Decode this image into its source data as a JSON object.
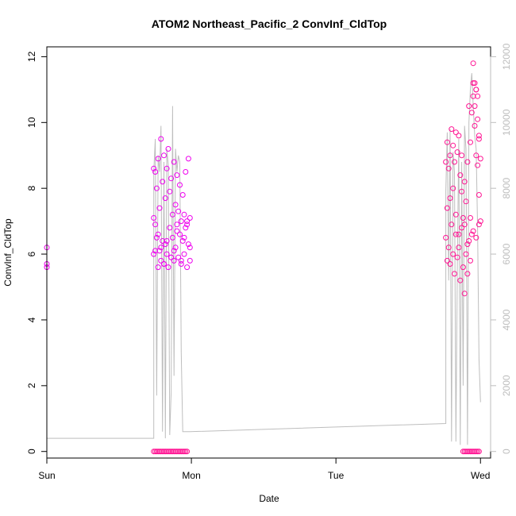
{
  "chart_data": {
    "type": "scatter",
    "title": "ATOM2 Northeast_Pacific_2 ConvInf_CldTop",
    "xlabel": "Date",
    "ylabel": "ConvInf_CldTop",
    "x_unit": "days",
    "xlim": [
      0,
      3.07
    ],
    "ylim": [
      -0.2,
      12.3
    ],
    "y2lim": [
      -200,
      12300
    ],
    "x_ticks": [
      {
        "value": 0,
        "label": "Sun"
      },
      {
        "value": 1,
        "label": "Mon"
      },
      {
        "value": 2,
        "label": "Tue"
      },
      {
        "value": 3,
        "label": "Wed"
      }
    ],
    "y_ticks": [
      0,
      2,
      4,
      6,
      8,
      10,
      12
    ],
    "y2_ticks": [
      0,
      2000,
      4000,
      6000,
      8000,
      10000,
      12000
    ],
    "grid": false,
    "legend": "none",
    "colors": {
      "points": "#ee00ee",
      "points_dense": "#ff1493",
      "line": "#bebebe",
      "axis": "#000000",
      "right_axis": "#bdbdbd"
    },
    "series": [
      {
        "kind": "points",
        "axis": "left",
        "x": [
          0.0,
          0.0,
          0.0,
          0.74,
          0.74,
          0.74,
          0.75,
          0.75,
          0.76,
          0.76,
          0.77,
          0.77,
          0.78,
          0.78,
          0.79,
          0.79,
          0.8,
          0.8,
          0.81,
          0.81,
          0.82,
          0.82,
          0.83,
          0.83,
          0.84,
          0.84,
          0.85,
          0.85,
          0.86,
          0.86,
          0.87,
          0.87,
          0.88,
          0.88,
          0.89,
          0.89,
          0.9,
          0.9,
          0.91,
          0.91,
          0.92,
          0.92,
          0.93,
          0.93,
          0.94,
          0.94,
          0.95,
          0.95,
          0.96,
          0.96,
          0.97,
          0.97,
          0.98,
          0.98,
          0.99,
          0.99,
          0.75,
          0.77,
          0.79,
          0.81,
          0.83,
          0.86,
          0.88,
          0.9,
          0.93,
          0.95,
          0.97,
          0.99,
          0.74,
          0.75,
          0.76,
          0.77,
          0.78,
          0.79,
          0.8,
          0.81,
          0.82,
          0.83,
          0.84,
          0.85,
          0.86,
          0.87,
          0.88,
          0.89,
          0.9,
          0.91,
          0.92,
          0.93,
          0.94,
          0.95,
          0.96,
          0.97,
          2.76,
          2.76,
          2.77,
          2.77,
          2.78,
          2.78,
          2.79,
          2.79,
          2.8,
          2.8,
          2.81,
          2.81,
          2.82,
          2.82,
          2.83,
          2.83,
          2.84,
          2.84,
          2.85,
          2.85,
          2.86,
          2.86,
          2.87,
          2.87,
          2.88,
          2.88,
          2.89,
          2.89,
          2.9,
          2.9,
          2.91,
          2.91,
          2.92,
          2.92,
          2.93,
          2.93,
          2.94,
          2.94,
          2.95,
          2.95,
          2.96,
          2.96,
          2.97,
          2.97,
          2.98,
          2.98,
          2.99,
          2.99,
          3.0,
          3.0,
          2.77,
          2.79,
          2.81,
          2.83,
          2.85,
          2.87,
          2.89,
          2.91,
          2.93,
          2.95,
          2.97,
          2.99,
          2.95,
          2.96,
          2.97,
          2.98,
          2.99,
          2.88,
          2.89,
          2.9,
          2.91,
          2.92,
          2.93,
          2.94,
          2.95,
          2.96,
          2.97,
          2.98,
          2.99
        ],
        "y": [
          6.2,
          5.7,
          5.6,
          8.6,
          7.1,
          6.0,
          8.5,
          6.9,
          8.0,
          6.5,
          8.9,
          5.6,
          7.4,
          6.1,
          9.5,
          5.8,
          8.2,
          6.4,
          9.0,
          5.7,
          7.7,
          6.3,
          8.6,
          6.0,
          9.2,
          5.6,
          7.9,
          6.8,
          8.3,
          5.9,
          7.2,
          6.5,
          8.8,
          5.8,
          7.5,
          6.2,
          8.4,
          6.9,
          7.3,
          5.9,
          8.1,
          6.6,
          7.0,
          5.7,
          7.8,
          6.4,
          7.2,
          6.0,
          8.5,
          6.8,
          7.0,
          5.6,
          8.9,
          6.3,
          7.1,
          5.8,
          6.1,
          6.6,
          6.2,
          5.7,
          6.4,
          5.9,
          6.1,
          6.7,
          5.8,
          6.5,
          6.9,
          6.2,
          0.0,
          0.0,
          0.0,
          0.0,
          0.0,
          0.0,
          0.0,
          0.0,
          0.0,
          0.0,
          0.0,
          0.0,
          0.0,
          0.0,
          0.0,
          0.0,
          0.0,
          0.0,
          0.0,
          0.0,
          0.0,
          0.0,
          0.0,
          0.0,
          8.8,
          6.5,
          9.4,
          5.8,
          8.6,
          6.2,
          9.0,
          5.7,
          9.8,
          6.9,
          9.3,
          6.0,
          8.8,
          5.4,
          9.7,
          6.6,
          9.1,
          5.9,
          9.6,
          6.2,
          8.4,
          5.2,
          9.0,
          6.8,
          7.1,
          5.6,
          8.2,
          4.8,
          7.6,
          6.0,
          8.8,
          5.4,
          10.5,
          6.4,
          9.4,
          5.8,
          10.3,
          6.6,
          11.8,
          10.8,
          11.2,
          9.9,
          11.0,
          9.0,
          10.1,
          8.7,
          9.6,
          7.8,
          8.9,
          7.0,
          7.4,
          7.7,
          8.0,
          7.2,
          6.6,
          7.9,
          6.9,
          6.3,
          7.1,
          6.7,
          6.5,
          6.9,
          11.2,
          10.5,
          11.0,
          10.8,
          9.5,
          0.0,
          0.0,
          0.0,
          0.0,
          0.0,
          0.0,
          0.0,
          0.0,
          0.0,
          0.0,
          0.0,
          0.0
        ]
      },
      {
        "kind": "line",
        "axis": "right",
        "x": [
          0.0,
          0.0,
          0.74,
          0.74,
          0.75,
          0.76,
          0.77,
          0.78,
          0.79,
          0.8,
          0.81,
          0.82,
          0.83,
          0.84,
          0.85,
          0.86,
          0.87,
          0.88,
          0.89,
          0.9,
          0.91,
          0.92,
          0.93,
          0.94,
          0.95,
          0.96,
          0.97,
          0.98,
          0.99,
          0.99,
          0.99,
          2.76,
          2.76,
          2.77,
          2.78,
          2.79,
          2.8,
          2.81,
          2.82,
          2.83,
          2.84,
          2.85,
          2.86,
          2.87,
          2.88,
          2.89,
          2.9,
          2.91,
          2.92,
          2.93,
          2.94,
          2.95,
          2.96,
          2.97,
          2.98,
          2.99,
          3.0,
          3.0
        ],
        "y": [
          100,
          400,
          400,
          8500,
          9500,
          1700,
          9000,
          8500,
          9900,
          600,
          8800,
          400,
          9200,
          8700,
          500,
          1800,
          10500,
          2300,
          9200,
          8500,
          9000,
          8800,
          3000,
          600,
          600,
          600,
          600,
          600,
          600,
          600,
          600,
          850,
          7900,
          9700,
          5200,
          9800,
          300,
          9100,
          8500,
          300,
          5600,
          9500,
          200,
          8800,
          2000,
          9900,
          9200,
          200,
          10000,
          11000,
          11500,
          10500,
          9600,
          9200,
          6800,
          2800,
          1500,
          1500
        ]
      }
    ]
  }
}
